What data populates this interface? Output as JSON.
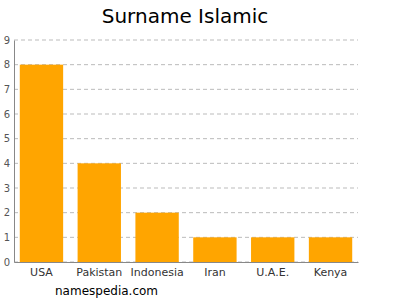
{
  "chart_data": {
    "type": "bar",
    "title": "Surname Islamic",
    "categories": [
      "USA",
      "Pakistan",
      "Indonesia",
      "Iran",
      "U.A.E.",
      "Kenya"
    ],
    "values": [
      8,
      4,
      2,
      1,
      1,
      1
    ],
    "color": "#ffa500",
    "ylim": [
      0,
      9
    ],
    "yticks": [
      0,
      1,
      2,
      3,
      4,
      5,
      6,
      7,
      8,
      9
    ],
    "grid": true,
    "source": "namespedia.com"
  }
}
